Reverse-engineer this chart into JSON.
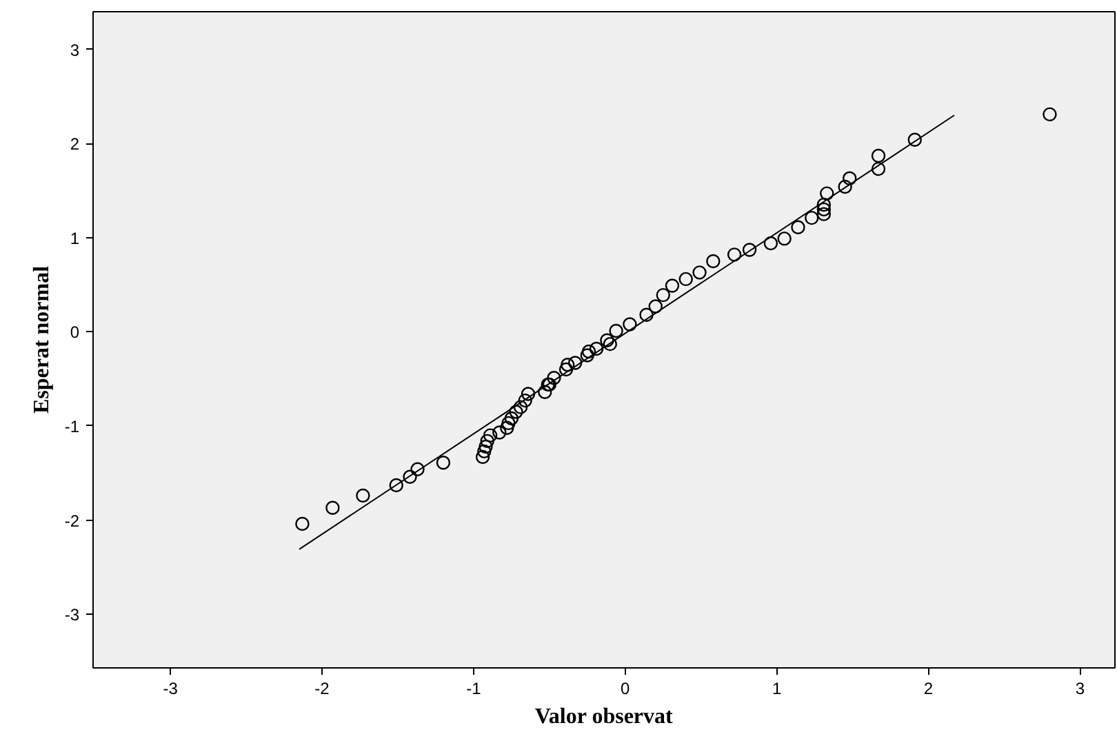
{
  "chart_data": {
    "type": "scatter",
    "xlabel": "Valor observat",
    "ylabel": "Esperat normal",
    "xlim": [
      -3.51,
      3.23
    ],
    "ylim": [
      -3.57,
      3.4
    ],
    "xticks": [
      -3,
      -2,
      -1,
      0,
      1,
      2,
      3
    ],
    "yticks": [
      -3,
      -2,
      -1,
      0,
      1,
      2,
      3
    ],
    "grid": false,
    "series": [
      {
        "marker": "circle",
        "color": "#000000",
        "x": [
          -2.13,
          -1.93,
          -1.73,
          -1.51,
          -1.42,
          -1.37,
          -1.2,
          -0.94,
          -0.93,
          -0.92,
          -0.91,
          -0.89,
          -0.83,
          -0.78,
          -0.77,
          -0.75,
          -0.72,
          -0.69,
          -0.66,
          -0.64,
          -0.53,
          -0.51,
          -0.5,
          -0.47,
          -0.39,
          -0.38,
          -0.33,
          -0.25,
          -0.24,
          -0.19,
          -0.12,
          -0.1,
          -0.06,
          0.03,
          0.14,
          0.2,
          0.25,
          0.31,
          0.4,
          0.49,
          0.58,
          0.72,
          0.82,
          0.96,
          1.05,
          1.14,
          1.23,
          1.31,
          1.31,
          1.31,
          1.33,
          1.45,
          1.48,
          1.67,
          1.67,
          1.91,
          2.8
        ],
        "values": [
          -2.04,
          -1.87,
          -1.74,
          -1.63,
          -1.54,
          -1.46,
          -1.39,
          -1.33,
          -1.27,
          -1.22,
          -1.16,
          -1.1,
          -1.07,
          -1.02,
          -0.97,
          -0.92,
          -0.85,
          -0.8,
          -0.73,
          -0.66,
          -0.64,
          -0.56,
          -0.56,
          -0.49,
          -0.4,
          -0.35,
          -0.33,
          -0.25,
          -0.21,
          -0.18,
          -0.09,
          -0.13,
          0.01,
          0.08,
          0.18,
          0.27,
          0.39,
          0.49,
          0.56,
          0.63,
          0.75,
          0.82,
          0.87,
          0.94,
          0.99,
          1.11,
          1.21,
          1.3,
          1.25,
          1.35,
          1.47,
          1.54,
          1.63,
          1.73,
          1.87,
          2.04,
          2.31
        ]
      },
      {
        "type": "line",
        "color": "#000000",
        "line_style": "solid",
        "x": [
          -2.15,
          2.17
        ],
        "values": [
          -2.31,
          2.3
        ]
      }
    ]
  }
}
